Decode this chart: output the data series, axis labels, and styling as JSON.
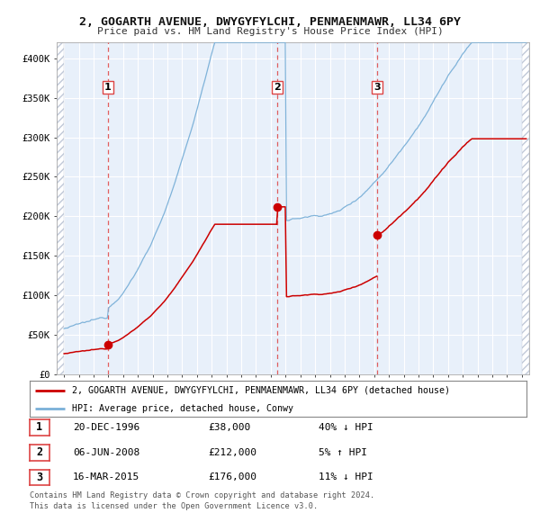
{
  "title_line1": "2, GOGARTH AVENUE, DWYGYFYLCHI, PENMAENMAWR, LL34 6PY",
  "title_line2": "Price paid vs. HM Land Registry's House Price Index (HPI)",
  "ylim": [
    0,
    420000
  ],
  "yticks": [
    0,
    50000,
    100000,
    150000,
    200000,
    250000,
    300000,
    350000,
    400000
  ],
  "ytick_labels": [
    "£0",
    "£50K",
    "£100K",
    "£150K",
    "£200K",
    "£250K",
    "£300K",
    "£350K",
    "£400K"
  ],
  "hpi_color": "#7ab0d8",
  "price_color": "#cc0000",
  "marker_color": "#cc0000",
  "vline_color": "#dd4444",
  "background_color": "#e8f0fa",
  "grid_color": "#c8d8ec",
  "hatch_color": "#c0c8d8",
  "transactions": [
    {
      "num": 1,
      "date_str": "20-DEC-1996",
      "year": 1996.97,
      "price": 38000,
      "pct": "40%",
      "dir": "↓"
    },
    {
      "num": 2,
      "date_str": "06-JUN-2008",
      "year": 2008.43,
      "price": 212000,
      "pct": "5%",
      "dir": "↑"
    },
    {
      "num": 3,
      "date_str": "16-MAR-2015",
      "year": 2015.21,
      "price": 176000,
      "pct": "11%",
      "dir": "↓"
    }
  ],
  "legend_line1": "2, GOGARTH AVENUE, DWYGYFYLCHI, PENMAENMAWR, LL34 6PY (detached house)",
  "legend_line2": "HPI: Average price, detached house, Conwy",
  "footer_line1": "Contains HM Land Registry data © Crown copyright and database right 2024.",
  "footer_line2": "This data is licensed under the Open Government Licence v3.0.",
  "xlim_left": 1993.5,
  "xlim_right": 2025.5,
  "hatch_left_end": 1994.0,
  "hatch_right_start": 2025.0
}
